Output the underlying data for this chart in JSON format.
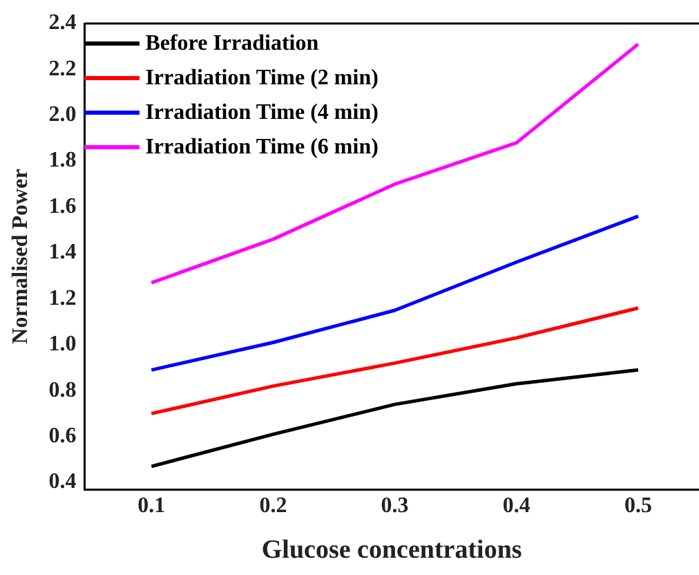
{
  "chart_data": {
    "type": "line",
    "xlabel": "Glucose concentrations",
    "ylabel": "Normalised Power",
    "x": [
      0.1,
      0.2,
      0.3,
      0.4,
      0.5
    ],
    "xlim": [
      0.045,
      0.55
    ],
    "xticks": [
      0.1,
      0.2,
      0.3,
      0.4,
      0.5
    ],
    "ylim": [
      0.37,
      2.4
    ],
    "yticks": [
      {
        "value": 0.4,
        "label": "0.4"
      },
      {
        "value": 0.6,
        "label": "0.6"
      },
      {
        "value": 0.8,
        "label": "0.8"
      },
      {
        "value": 1.0,
        "label": "1.0"
      },
      {
        "value": 1.2,
        "label": "1.2"
      },
      {
        "value": 1.4,
        "label": "1.4"
      },
      {
        "value": 1.6,
        "label": "1.6"
      },
      {
        "value": 1.8,
        "label": "1.8"
      },
      {
        "value": 2.0,
        "label": "2.0"
      },
      {
        "value": 2.2,
        "label": "2.2"
      },
      {
        "value": 2.4,
        "label": "2.4"
      }
    ],
    "series": [
      {
        "name": "Before Irradiation",
        "color": "#000000",
        "values": [
          0.47,
          0.61,
          0.74,
          0.83,
          0.89
        ]
      },
      {
        "name": "Irradiation Time (2 min)",
        "color": "#ff0000",
        "values": [
          0.7,
          0.82,
          0.92,
          1.03,
          1.16
        ]
      },
      {
        "name": "Irradiation Time (4 min)",
        "color": "#0000ff",
        "values": [
          0.89,
          1.01,
          1.15,
          1.36,
          1.56
        ]
      },
      {
        "name": "Irradiation Time (6 min)",
        "color": "#ff00ff",
        "values": [
          1.27,
          1.46,
          1.7,
          1.88,
          2.31
        ]
      }
    ],
    "grid": false,
    "legend": "top left",
    "marker": "none",
    "line_style": "solid"
  }
}
